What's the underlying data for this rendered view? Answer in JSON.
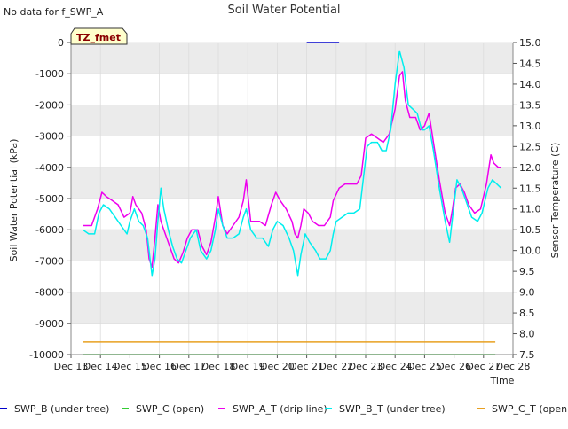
{
  "notice": "No data for f_SWP_A",
  "badge": {
    "label": "TZ_fmet",
    "fill": "#ffffcc",
    "stroke": "#333333",
    "text_color": "#8b0000"
  },
  "chart_data": {
    "type": "line",
    "title": "Soil Water Potential",
    "xlabel": "Time",
    "ylabel": "Soil Water Potential (kPa)",
    "y2label": "Sensor Temperature (C)",
    "xlim": [
      13,
      28
    ],
    "ylim": [
      -10000,
      0
    ],
    "y2lim": [
      7.5,
      15.0
    ],
    "x_ticks": [
      13,
      14,
      15,
      16,
      17,
      18,
      19,
      20,
      21,
      22,
      23,
      24,
      25,
      26,
      27,
      28
    ],
    "x_tick_labels": [
      "Dec 13",
      "Dec 14",
      "Dec 15",
      "Dec 16",
      "Dec 17",
      "Dec 18",
      "Dec 19",
      "Dec 20",
      "Dec 21",
      "Dec 22",
      "Dec 23",
      "Dec 24",
      "Dec 25",
      "Dec 26",
      "Dec 27",
      "Dec 28"
    ],
    "y_ticks": [
      0,
      -1000,
      -2000,
      -3000,
      -4000,
      -5000,
      -6000,
      -7000,
      -8000,
      -9000,
      -10000
    ],
    "y2_ticks": [
      "7.5",
      "8.0",
      "8.5",
      "9.0",
      "9.5",
      "10.0",
      "10.5",
      "11.0",
      "11.5",
      "12.0",
      "12.5",
      "13.0",
      "13.5",
      "14.0",
      "14.5",
      "15.0"
    ],
    "grid": true,
    "band_color": "#ebebeb",
    "legend_position": "bottom",
    "series": [
      {
        "name": "SWP_B (under tree)",
        "color": "#0000cc",
        "axis": "left",
        "points": [
          [
            21.0,
            0
          ],
          [
            22.1,
            0
          ]
        ]
      },
      {
        "name": "SWP_C (open)",
        "color": "#33cc33",
        "axis": "left",
        "points": [
          [
            13.4,
            -10000
          ],
          [
            27.4,
            -10000
          ]
        ]
      },
      {
        "name": "SWP_A_T (drip line)",
        "color": "#ee00ee",
        "axis": "right",
        "points": [
          [
            13.4,
            10.6
          ],
          [
            13.7,
            10.6
          ],
          [
            13.9,
            11.0
          ],
          [
            14.05,
            11.4
          ],
          [
            14.2,
            11.3
          ],
          [
            14.4,
            11.2
          ],
          [
            14.6,
            11.1
          ],
          [
            14.8,
            10.8
          ],
          [
            15.0,
            10.9
          ],
          [
            15.1,
            11.3
          ],
          [
            15.2,
            11.1
          ],
          [
            15.4,
            10.9
          ],
          [
            15.55,
            10.5
          ],
          [
            15.65,
            9.8
          ],
          [
            15.75,
            9.6
          ],
          [
            15.85,
            10.3
          ],
          [
            15.95,
            11.1
          ],
          [
            16.05,
            10.7
          ],
          [
            16.2,
            10.4
          ],
          [
            16.35,
            10.1
          ],
          [
            16.5,
            9.8
          ],
          [
            16.65,
            9.7
          ],
          [
            16.8,
            9.95
          ],
          [
            16.95,
            10.3
          ],
          [
            17.1,
            10.5
          ],
          [
            17.3,
            10.5
          ],
          [
            17.45,
            10.1
          ],
          [
            17.6,
            9.9
          ],
          [
            17.75,
            10.2
          ],
          [
            17.9,
            10.8
          ],
          [
            18.0,
            11.3
          ],
          [
            18.15,
            10.6
          ],
          [
            18.3,
            10.4
          ],
          [
            18.5,
            10.6
          ],
          [
            18.7,
            10.8
          ],
          [
            18.85,
            11.2
          ],
          [
            18.95,
            11.7
          ],
          [
            19.1,
            10.7
          ],
          [
            19.4,
            10.7
          ],
          [
            19.6,
            10.6
          ],
          [
            19.8,
            11.1
          ],
          [
            19.95,
            11.4
          ],
          [
            20.1,
            11.2
          ],
          [
            20.3,
            11.0
          ],
          [
            20.5,
            10.7
          ],
          [
            20.6,
            10.4
          ],
          [
            20.7,
            10.3
          ],
          [
            20.8,
            10.6
          ],
          [
            20.9,
            11.0
          ],
          [
            21.05,
            10.9
          ],
          [
            21.2,
            10.7
          ],
          [
            21.4,
            10.6
          ],
          [
            21.6,
            10.6
          ],
          [
            21.8,
            10.8
          ],
          [
            21.9,
            11.2
          ],
          [
            22.1,
            11.5
          ],
          [
            22.3,
            11.6
          ],
          [
            22.5,
            11.6
          ],
          [
            22.7,
            11.6
          ],
          [
            22.85,
            11.8
          ],
          [
            23.0,
            12.7
          ],
          [
            23.2,
            12.8
          ],
          [
            23.4,
            12.7
          ],
          [
            23.6,
            12.6
          ],
          [
            23.8,
            12.8
          ],
          [
            24.0,
            13.4
          ],
          [
            24.15,
            14.2
          ],
          [
            24.25,
            14.3
          ],
          [
            24.35,
            13.6
          ],
          [
            24.5,
            13.2
          ],
          [
            24.7,
            13.2
          ],
          [
            24.85,
            12.9
          ],
          [
            25.0,
            13.0
          ],
          [
            25.15,
            13.3
          ],
          [
            25.3,
            12.6
          ],
          [
            25.5,
            11.7
          ],
          [
            25.7,
            10.9
          ],
          [
            25.85,
            10.6
          ],
          [
            25.95,
            11.0
          ],
          [
            26.05,
            11.5
          ],
          [
            26.2,
            11.6
          ],
          [
            26.35,
            11.4
          ],
          [
            26.5,
            11.1
          ],
          [
            26.7,
            10.9
          ],
          [
            26.9,
            11.0
          ],
          [
            27.1,
            11.6
          ],
          [
            27.25,
            12.3
          ],
          [
            27.35,
            12.1
          ],
          [
            27.5,
            12.0
          ],
          [
            27.6,
            12.0
          ]
        ]
      },
      {
        "name": "SWP_B_T (under tree)",
        "color": "#00eeee",
        "axis": "right",
        "points": [
          [
            13.4,
            10.5
          ],
          [
            13.6,
            10.4
          ],
          [
            13.8,
            10.4
          ],
          [
            13.95,
            10.9
          ],
          [
            14.1,
            11.1
          ],
          [
            14.3,
            11.0
          ],
          [
            14.5,
            10.8
          ],
          [
            14.7,
            10.6
          ],
          [
            14.9,
            10.4
          ],
          [
            15.0,
            10.7
          ],
          [
            15.15,
            11.0
          ],
          [
            15.3,
            10.7
          ],
          [
            15.45,
            10.6
          ],
          [
            15.6,
            10.3
          ],
          [
            15.75,
            9.4
          ],
          [
            15.85,
            9.8
          ],
          [
            15.95,
            10.7
          ],
          [
            16.05,
            11.5
          ],
          [
            16.15,
            11.0
          ],
          [
            16.3,
            10.5
          ],
          [
            16.45,
            10.1
          ],
          [
            16.6,
            9.8
          ],
          [
            16.75,
            9.7
          ],
          [
            16.9,
            10.0
          ],
          [
            17.05,
            10.3
          ],
          [
            17.25,
            10.5
          ],
          [
            17.4,
            10.0
          ],
          [
            17.6,
            9.8
          ],
          [
            17.75,
            10.0
          ],
          [
            17.9,
            10.5
          ],
          [
            18.0,
            11.0
          ],
          [
            18.15,
            10.6
          ],
          [
            18.3,
            10.3
          ],
          [
            18.5,
            10.3
          ],
          [
            18.7,
            10.4
          ],
          [
            18.85,
            10.8
          ],
          [
            18.95,
            11.0
          ],
          [
            19.1,
            10.5
          ],
          [
            19.3,
            10.3
          ],
          [
            19.5,
            10.3
          ],
          [
            19.7,
            10.1
          ],
          [
            19.85,
            10.5
          ],
          [
            20.0,
            10.7
          ],
          [
            20.2,
            10.6
          ],
          [
            20.4,
            10.3
          ],
          [
            20.55,
            10.0
          ],
          [
            20.7,
            9.4
          ],
          [
            20.8,
            9.9
          ],
          [
            20.95,
            10.4
          ],
          [
            21.1,
            10.2
          ],
          [
            21.3,
            10.0
          ],
          [
            21.45,
            9.8
          ],
          [
            21.65,
            9.8
          ],
          [
            21.8,
            10.0
          ],
          [
            21.9,
            10.4
          ],
          [
            22.0,
            10.7
          ],
          [
            22.2,
            10.8
          ],
          [
            22.4,
            10.9
          ],
          [
            22.6,
            10.9
          ],
          [
            22.8,
            11.0
          ],
          [
            22.9,
            11.6
          ],
          [
            23.05,
            12.5
          ],
          [
            23.2,
            12.6
          ],
          [
            23.4,
            12.6
          ],
          [
            23.55,
            12.4
          ],
          [
            23.7,
            12.4
          ],
          [
            23.85,
            12.9
          ],
          [
            24.0,
            14.0
          ],
          [
            24.15,
            14.8
          ],
          [
            24.3,
            14.4
          ],
          [
            24.45,
            13.5
          ],
          [
            24.6,
            13.4
          ],
          [
            24.75,
            13.3
          ],
          [
            24.9,
            12.9
          ],
          [
            25.0,
            12.9
          ],
          [
            25.15,
            13.0
          ],
          [
            25.3,
            12.4
          ],
          [
            25.5,
            11.5
          ],
          [
            25.7,
            10.7
          ],
          [
            25.85,
            10.2
          ],
          [
            25.95,
            10.8
          ],
          [
            26.1,
            11.7
          ],
          [
            26.25,
            11.5
          ],
          [
            26.4,
            11.2
          ],
          [
            26.6,
            10.8
          ],
          [
            26.8,
            10.7
          ],
          [
            26.95,
            10.9
          ],
          [
            27.15,
            11.5
          ],
          [
            27.3,
            11.7
          ],
          [
            27.45,
            11.6
          ],
          [
            27.6,
            11.5
          ]
        ]
      },
      {
        "name": "SWP_C_T (open)",
        "color": "#e8a020",
        "axis": "right",
        "points": [
          [
            13.4,
            7.8
          ],
          [
            27.4,
            7.8
          ]
        ]
      }
    ]
  }
}
